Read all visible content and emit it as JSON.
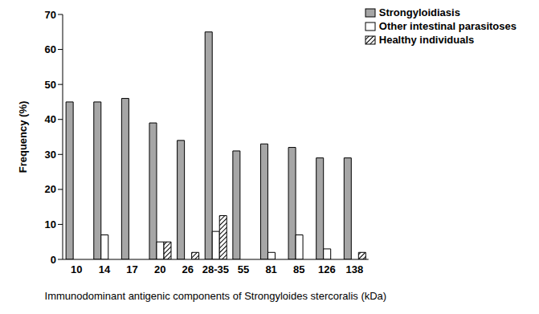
{
  "chart_data": {
    "type": "bar",
    "x_label": "Immunodominant antigenic components of Strongyloides stercoralis (kDa)",
    "y_label": "Frequency (%)",
    "categories": [
      "10",
      "14",
      "17",
      "20",
      "26",
      "28-35",
      "55",
      "81",
      "85",
      "126",
      "138"
    ],
    "series": [
      {
        "name": "Strongyloidiasis",
        "color": "#a6a6a6",
        "values": [
          45,
          45,
          46,
          39,
          34,
          65,
          31,
          33,
          32,
          29,
          29
        ]
      },
      {
        "name": "Other intestinal parasitoses",
        "color": "#ffffff",
        "values": [
          0,
          7,
          0,
          5,
          0,
          8,
          0,
          2,
          7,
          3,
          0
        ]
      },
      {
        "name": "Healthy individuals",
        "color": "#000000",
        "marker": "hatch",
        "values": [
          0,
          0,
          0,
          5,
          2,
          12.5,
          0,
          0,
          0,
          0,
          2
        ]
      }
    ],
    "ylim": [
      0,
      70
    ],
    "yticks": [
      0,
      10,
      20,
      30,
      40,
      50,
      60,
      70
    ],
    "legend": "top-right",
    "grid": false
  }
}
